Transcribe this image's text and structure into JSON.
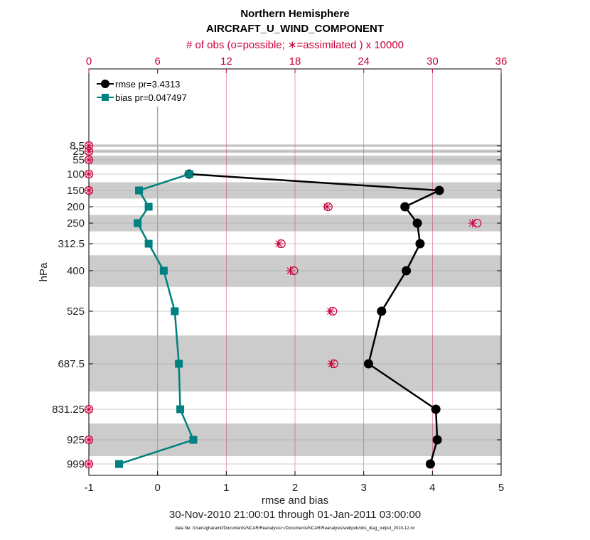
{
  "chart_data": {
    "type": "line",
    "title": "Northern Hemisphere",
    "subtitle": "AIRCRAFT_U_WIND_COMPONENT",
    "top_axis_label": "# of obs (o=possible; ∗=assimilated ) x 10000",
    "xlabel": "rmse and bias",
    "ylabel": "hPa",
    "date_range": "30-Nov-2010 21:00:01 through 01-Jan-2011 03:00:00",
    "footnote": "data file: /Users/gharamti/Documents/NCAR/Reanalysis/~/Documents/NCAR/Reanalysis/webpub/obs_diag_output_2010-12.nc",
    "xlim": [
      -1,
      5
    ],
    "x_ticks": [
      "-1",
      "0",
      "1",
      "2",
      "3",
      "4",
      "5"
    ],
    "top_xlim": [
      0,
      36
    ],
    "top_ticks": [
      "0",
      "6",
      "12",
      "18",
      "24",
      "30",
      "36"
    ],
    "y_levels": [
      8.5,
      25,
      55,
      100,
      150,
      200,
      250,
      312.5,
      400,
      525,
      687.5,
      831.25,
      925,
      999
    ],
    "y_tick_labels": [
      "8.5",
      "25",
      "55",
      "100",
      "150",
      "200",
      "250",
      "312.5",
      "400",
      "525",
      "687.5",
      "831.25",
      "925",
      "999"
    ],
    "legend": [
      "rmse pr=3.4313",
      "bias pr=0.047497"
    ],
    "series": [
      {
        "name": "rmse",
        "color": "#000000",
        "levels": [
          100,
          150,
          200,
          250,
          312.5,
          400,
          525,
          687.5,
          831.25,
          925,
          999
        ],
        "values": [
          0.46,
          4.1,
          3.6,
          3.78,
          3.82,
          3.62,
          3.26,
          3.07,
          4.05,
          4.07,
          3.97
        ]
      },
      {
        "name": "bias",
        "color": "#008080",
        "levels": [
          100,
          150,
          200,
          250,
          312.5,
          400,
          525,
          687.5,
          831.25,
          925,
          999
        ],
        "values": [
          0.46,
          -0.27,
          -0.13,
          -0.29,
          -0.13,
          0.09,
          0.25,
          0.31,
          0.33,
          0.52,
          -0.56
        ]
      }
    ],
    "obs_counts": {
      "color": "#c8003a",
      "levels": [
        8.5,
        25,
        55,
        100,
        150,
        200,
        250,
        312.5,
        400,
        525,
        687.5,
        831.25,
        925,
        999
      ],
      "possible": [
        0,
        0,
        0,
        0,
        0,
        20.9,
        33.9,
        16.8,
        17.9,
        21.3,
        21.4,
        0,
        0,
        0
      ],
      "assimilated": [
        0,
        0,
        0,
        0,
        0,
        20.8,
        33.5,
        16.6,
        17.6,
        21.1,
        21.2,
        0,
        0,
        0
      ]
    },
    "shaded_layers_hPa": [
      [
        5,
        12
      ],
      [
        20,
        30
      ],
      [
        40,
        70
      ],
      [
        125,
        175
      ],
      [
        225,
        275
      ],
      [
        350,
        450
      ],
      [
        600,
        775
      ],
      [
        875,
        975
      ]
    ]
  }
}
